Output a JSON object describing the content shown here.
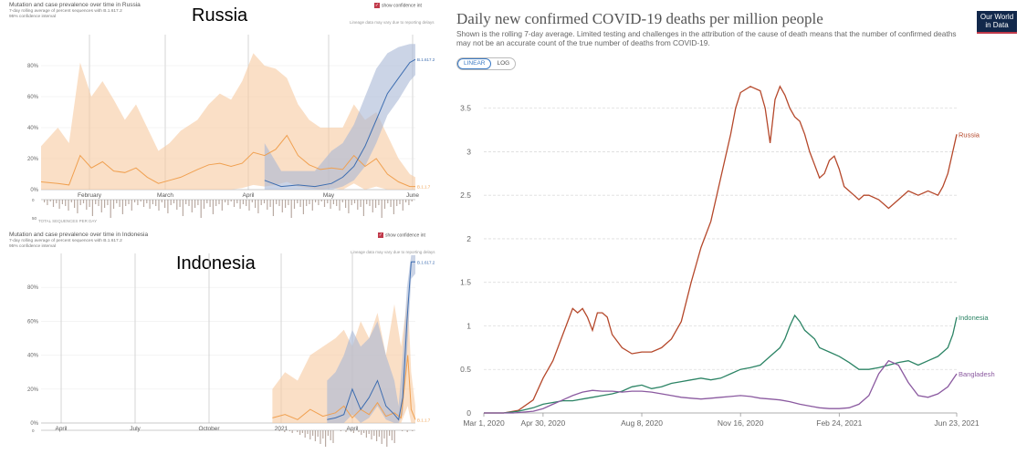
{
  "chart_data": [
    {
      "type": "area",
      "title": "Mutation and case prevalence over time in Russia",
      "panel_label": "Russia",
      "legend": [
        "7-day rolling average of percent sequences with B.1.617.2",
        "95% confidence interval"
      ],
      "toggle_label": "show confidence int",
      "annotation_note": "Lineage data may vary due to reporting delays",
      "footer_note": "TOTAL SEQUENCES PER DAY",
      "categories": [
        "February",
        "March",
        "April",
        "May",
        "June"
      ],
      "y_ticks": [
        "0%",
        "20%",
        "40%",
        "60%",
        "80%"
      ],
      "ylim": [
        0,
        100
      ],
      "x_range": [
        0,
        134
      ],
      "end_labels": [
        "B.1.617.2",
        "B.1.1.7"
      ],
      "histogram_ticks": [
        "0",
        "50"
      ],
      "series": [
        {
          "name": "B.1.1.7",
          "color": "#f0a050",
          "x": [
            0,
            6,
            10,
            14,
            18,
            22,
            26,
            30,
            34,
            38,
            42,
            46,
            50,
            56,
            60,
            64,
            68,
            72,
            76,
            80,
            84,
            88,
            92,
            96,
            100,
            104,
            108,
            112,
            116,
            120,
            124,
            128,
            132,
            134
          ],
          "values": [
            5,
            4,
            3,
            22,
            14,
            18,
            12,
            11,
            14,
            8,
            4,
            6,
            8,
            13,
            16,
            17,
            15,
            17,
            24,
            22,
            26,
            35,
            22,
            16,
            13,
            14,
            13,
            22,
            15,
            20,
            10,
            5,
            2,
            2
          ],
          "lower": [
            0,
            0,
            0,
            0,
            0,
            0,
            0,
            0,
            0,
            0,
            0,
            0,
            0,
            0,
            0,
            0,
            0,
            1,
            3,
            2,
            3,
            5,
            2,
            1,
            0,
            1,
            0,
            4,
            0,
            2,
            0,
            0,
            0,
            0
          ],
          "upper": [
            28,
            40,
            30,
            82,
            60,
            70,
            58,
            45,
            55,
            40,
            25,
            30,
            38,
            45,
            55,
            62,
            58,
            70,
            88,
            80,
            78,
            72,
            55,
            45,
            40,
            40,
            40,
            55,
            45,
            50,
            35,
            20,
            10,
            8
          ]
        },
        {
          "name": "B.1.617.2",
          "color": "#3d6db0",
          "x": [
            80,
            86,
            92,
            98,
            104,
            108,
            112,
            116,
            120,
            124,
            128,
            132,
            134
          ],
          "values": [
            6,
            2,
            3,
            2,
            4,
            8,
            15,
            28,
            45,
            62,
            72,
            82,
            84
          ],
          "lower": [
            0,
            0,
            0,
            0,
            0,
            2,
            6,
            15,
            30,
            48,
            58,
            70,
            74
          ],
          "upper": [
            30,
            12,
            12,
            12,
            25,
            30,
            42,
            60,
            78,
            88,
            92,
            94,
            94
          ]
        }
      ]
    },
    {
      "type": "area",
      "title": "Mutation and case prevalence over time in Indonesia",
      "panel_label": "Indonesia",
      "legend": [
        "7-day rolling average of percent sequences with B.1.617.2",
        "95% confidence interval"
      ],
      "toggle_label": "show confidence int",
      "annotation_note": "Lineage data may vary due to reporting delays",
      "categories": [
        "April",
        "July",
        "October",
        "2021",
        "April"
      ],
      "y_ticks": [
        "0%",
        "20%",
        "40%",
        "60%",
        "80%"
      ],
      "ylim": [
        0,
        100
      ],
      "x_range": [
        0,
        445
      ],
      "end_labels": [
        "B.1.617.2",
        "B.1.1.7"
      ],
      "histogram_ticks": [
        "0"
      ],
      "series": [
        {
          "name": "B.1.1.7",
          "color": "#f0a050",
          "x": [
            275,
            290,
            305,
            320,
            335,
            350,
            360,
            370,
            380,
            390,
            400,
            410,
            420,
            428,
            436,
            440,
            445
          ],
          "values": [
            3,
            5,
            2,
            8,
            4,
            6,
            10,
            3,
            8,
            5,
            12,
            4,
            6,
            3,
            40,
            8,
            2
          ],
          "lower": [
            0,
            0,
            0,
            0,
            0,
            0,
            0,
            0,
            0,
            0,
            0,
            0,
            0,
            0,
            10,
            0,
            0
          ],
          "upper": [
            20,
            30,
            25,
            40,
            45,
            50,
            55,
            45,
            60,
            50,
            65,
            40,
            70,
            45,
            75,
            30,
            10
          ]
        },
        {
          "name": "B.1.617.2",
          "color": "#3d6db0",
          "x": [
            340,
            350,
            360,
            370,
            380,
            390,
            400,
            410,
            420,
            425,
            430,
            435,
            440,
            445
          ],
          "values": [
            2,
            3,
            5,
            20,
            8,
            15,
            25,
            10,
            5,
            2,
            15,
            60,
            95,
            95
          ],
          "lower": [
            0,
            0,
            0,
            5,
            0,
            3,
            10,
            2,
            0,
            0,
            5,
            40,
            85,
            88
          ],
          "upper": [
            25,
            30,
            40,
            55,
            45,
            50,
            60,
            40,
            25,
            10,
            40,
            80,
            99,
            99
          ]
        }
      ]
    },
    {
      "type": "line",
      "title": "Daily new confirmed COVID-19 deaths per million people",
      "subtitle": "Shown is the rolling 7-day average. Limited testing and challenges in the attribution of the cause of death means that the number of confirmed deaths may not be an accurate count of the true number of deaths from COVID-19.",
      "logo": "Our World in Data",
      "scale_options": [
        "LINEAR",
        "LOG"
      ],
      "active_scale": "LINEAR",
      "x_tick_labels": [
        "Mar 1, 2020",
        "Apr 30, 2020",
        "Aug 8, 2020",
        "Nov 16, 2020",
        "Feb 24, 2021",
        "Jun 23, 2021"
      ],
      "x_tick_days": [
        0,
        60,
        160,
        260,
        360,
        479
      ],
      "y_ticks": [
        "0",
        "0.5",
        "1",
        "1.5",
        "2",
        "2.5",
        "3",
        "3.5"
      ],
      "y_tick_values": [
        0,
        0.5,
        1,
        1.5,
        2,
        2.5,
        3,
        3.5
      ],
      "ylim": [
        0,
        3.8
      ],
      "x_range": [
        0,
        479
      ],
      "series": [
        {
          "name": "Russia",
          "color": "#b5482b",
          "x": [
            0,
            20,
            35,
            50,
            60,
            70,
            80,
            90,
            95,
            100,
            105,
            110,
            115,
            120,
            125,
            130,
            140,
            150,
            160,
            170,
            180,
            190,
            200,
            210,
            220,
            230,
            240,
            250,
            255,
            260,
            270,
            280,
            285,
            290,
            295,
            300,
            305,
            310,
            315,
            320,
            325,
            330,
            335,
            340,
            345,
            350,
            355,
            360,
            365,
            370,
            375,
            380,
            385,
            390,
            400,
            410,
            420,
            430,
            440,
            450,
            460,
            465,
            470,
            475,
            479
          ],
          "values": [
            0,
            0,
            0.03,
            0.15,
            0.4,
            0.6,
            0.9,
            1.2,
            1.15,
            1.2,
            1.1,
            0.95,
            1.15,
            1.15,
            1.1,
            0.9,
            0.75,
            0.68,
            0.7,
            0.7,
            0.75,
            0.85,
            1.05,
            1.5,
            1.9,
            2.2,
            2.7,
            3.2,
            3.5,
            3.68,
            3.75,
            3.7,
            3.5,
            3.1,
            3.6,
            3.75,
            3.65,
            3.5,
            3.4,
            3.35,
            3.2,
            3.0,
            2.85,
            2.7,
            2.75,
            2.9,
            2.95,
            2.8,
            2.6,
            2.55,
            2.5,
            2.45,
            2.5,
            2.5,
            2.45,
            2.35,
            2.45,
            2.55,
            2.5,
            2.55,
            2.5,
            2.6,
            2.75,
            3.0,
            3.2
          ]
        },
        {
          "name": "Indonesia",
          "color": "#2c8465",
          "x": [
            0,
            20,
            35,
            50,
            60,
            70,
            80,
            90,
            100,
            110,
            120,
            130,
            140,
            150,
            160,
            170,
            180,
            190,
            200,
            210,
            220,
            230,
            240,
            250,
            260,
            270,
            280,
            290,
            300,
            305,
            310,
            315,
            320,
            325,
            330,
            335,
            340,
            350,
            360,
            370,
            380,
            390,
            400,
            410,
            420,
            430,
            440,
            450,
            460,
            470,
            475,
            479
          ],
          "values": [
            0,
            0,
            0.02,
            0.06,
            0.1,
            0.12,
            0.14,
            0.14,
            0.16,
            0.18,
            0.2,
            0.22,
            0.25,
            0.3,
            0.32,
            0.28,
            0.3,
            0.34,
            0.36,
            0.38,
            0.4,
            0.38,
            0.4,
            0.45,
            0.5,
            0.52,
            0.55,
            0.65,
            0.75,
            0.85,
            1.0,
            1.12,
            1.05,
            0.95,
            0.9,
            0.85,
            0.75,
            0.7,
            0.65,
            0.58,
            0.5,
            0.5,
            0.52,
            0.55,
            0.58,
            0.6,
            0.55,
            0.6,
            0.65,
            0.75,
            0.9,
            1.1
          ]
        },
        {
          "name": "Bangladesh",
          "color": "#8b5aa0",
          "x": [
            0,
            30,
            50,
            60,
            70,
            80,
            90,
            100,
            110,
            120,
            130,
            140,
            150,
            160,
            170,
            180,
            190,
            200,
            210,
            220,
            230,
            240,
            250,
            260,
            270,
            280,
            290,
            300,
            310,
            320,
            330,
            340,
            350,
            360,
            370,
            380,
            390,
            400,
            410,
            420,
            430,
            440,
            450,
            460,
            470,
            479
          ],
          "values": [
            0,
            0,
            0.02,
            0.05,
            0.1,
            0.15,
            0.2,
            0.24,
            0.26,
            0.25,
            0.25,
            0.24,
            0.25,
            0.25,
            0.24,
            0.22,
            0.2,
            0.18,
            0.17,
            0.16,
            0.17,
            0.18,
            0.19,
            0.2,
            0.19,
            0.17,
            0.16,
            0.15,
            0.13,
            0.1,
            0.08,
            0.06,
            0.05,
            0.05,
            0.06,
            0.1,
            0.2,
            0.45,
            0.6,
            0.55,
            0.35,
            0.2,
            0.18,
            0.22,
            0.3,
            0.45
          ]
        }
      ]
    }
  ]
}
